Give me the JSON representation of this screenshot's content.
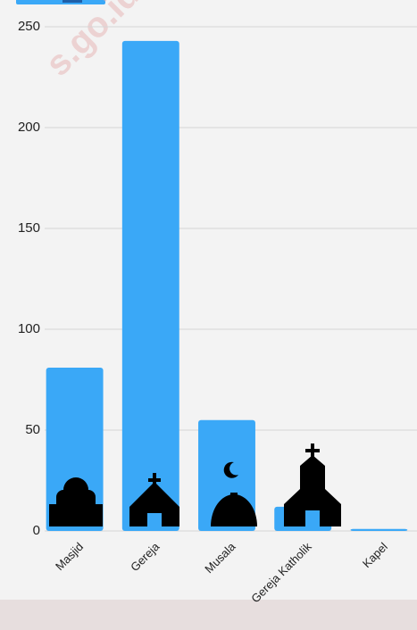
{
  "chart_data": {
    "type": "bar",
    "categories": [
      "Masjid",
      "Gereja",
      "Musala",
      "Gereja Katholik",
      "Kapel"
    ],
    "values": [
      81,
      243,
      55,
      12,
      1
    ],
    "color": "#3aa8f7",
    "ylim": [
      0,
      250
    ],
    "yticks": [
      0,
      50,
      100,
      150,
      200,
      250
    ],
    "grid": true,
    "watermark": "s.go.id"
  }
}
